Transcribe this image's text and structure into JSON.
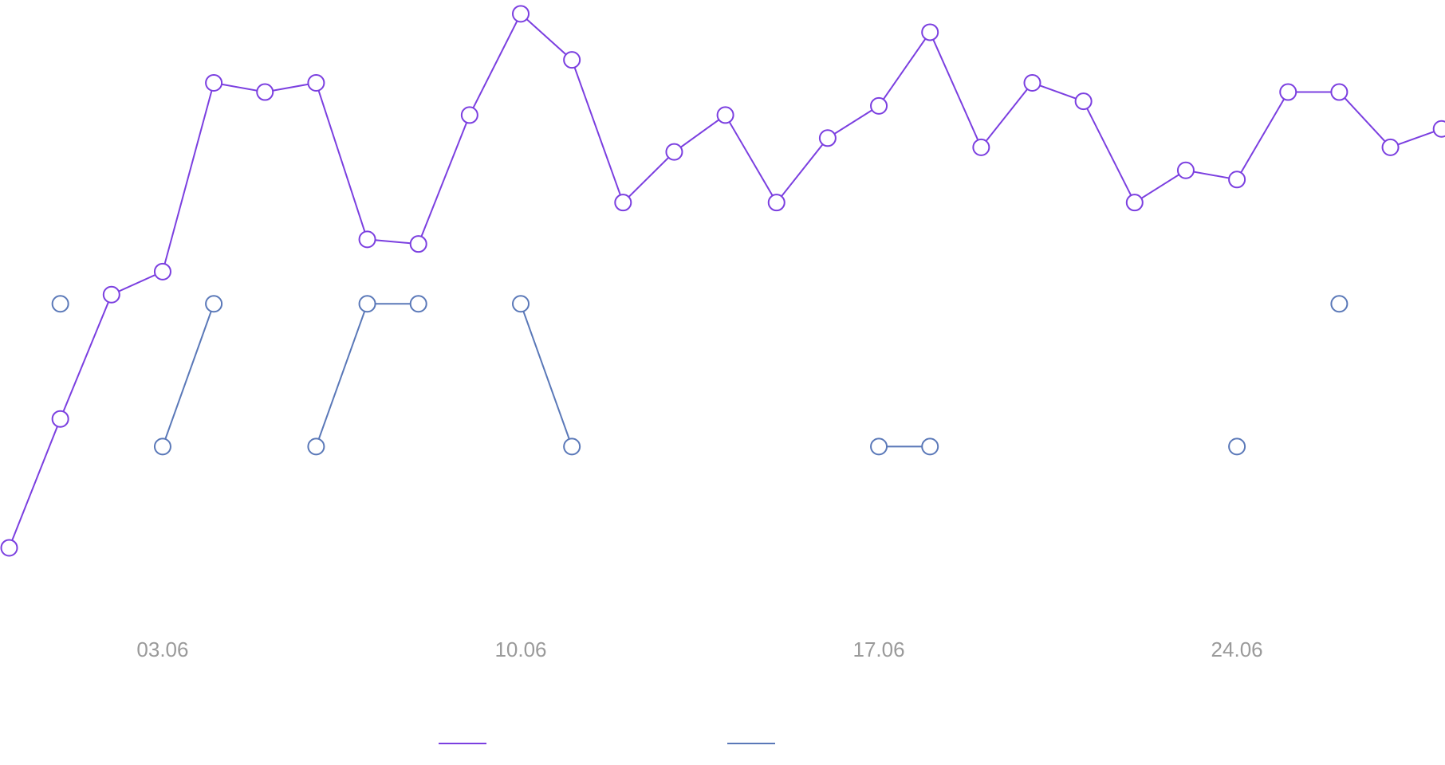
{
  "chart_data": {
    "type": "line",
    "categories": [
      null,
      null,
      null,
      "03.06",
      null,
      null,
      null,
      null,
      null,
      null,
      "10.06",
      null,
      null,
      null,
      null,
      null,
      null,
      "17.06",
      null,
      null,
      null,
      null,
      null,
      null,
      "24.06",
      null,
      null,
      null,
      null
    ],
    "series": [
      {
        "color": "#7b3fe0",
        "values": [
          11,
          39,
          66,
          71,
          112,
          110,
          112,
          78,
          77,
          105,
          127,
          117,
          86,
          97,
          105,
          86,
          100,
          107,
          123,
          98,
          112,
          108,
          86,
          93,
          91,
          110,
          110,
          98,
          102
        ]
      },
      {
        "color": "#5a78b8",
        "values": [
          null,
          64,
          null,
          33,
          64,
          null,
          33,
          64,
          64,
          null,
          64,
          33,
          null,
          null,
          null,
          null,
          null,
          33,
          33,
          null,
          null,
          null,
          null,
          null,
          33,
          null,
          64,
          null,
          null
        ]
      }
    ],
    "ylim": [
      0,
      130
    ]
  }
}
